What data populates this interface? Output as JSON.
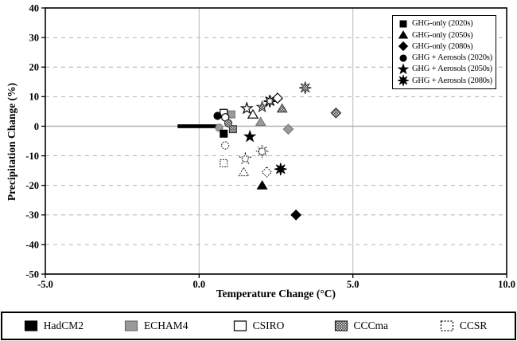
{
  "chart_data": {
    "type": "scatter",
    "xlabel": "Temperature Change (°C)",
    "ylabel": "Precipitation Change (%)",
    "xlim": [
      -5.0,
      10.0
    ],
    "ylim": [
      -50,
      40
    ],
    "xticks": [
      -5.0,
      0.0,
      5.0,
      10.0
    ],
    "xtick_labels": [
      "-5.0",
      "0.0",
      "5.0",
      "10.0"
    ],
    "yticks": [
      40,
      30,
      20,
      10,
      0,
      -10,
      -20,
      -30,
      -40,
      -50
    ],
    "grid": {
      "h_dashed": [
        30,
        20,
        10,
        -10,
        -20,
        -30,
        -40
      ],
      "h_solid": [
        0
      ],
      "v_solid": [
        0,
        5
      ]
    },
    "baseline_bar": {
      "x_start": -0.7,
      "x_end": 0.6,
      "y": 0,
      "color": "#000000"
    },
    "scenario_legend": [
      {
        "shape": "square",
        "label": "GHG-only (2020s)"
      },
      {
        "shape": "triangle",
        "label": "GHG-only (2050s)"
      },
      {
        "shape": "diamond",
        "label": "GHG-only (2080s)"
      },
      {
        "shape": "circle",
        "label": "GHG + Aerosols (2020s)"
      },
      {
        "shape": "star5",
        "label": "GHG + Aerosols (2050s)"
      },
      {
        "shape": "star8",
        "label": "GHG + Aerosols (2080s)"
      }
    ],
    "styles": {
      "black": {
        "fill": "#000000",
        "stroke": "#000000",
        "width": 1
      },
      "gray": {
        "fill": "#9a9a9a",
        "stroke": "#6b6b6b",
        "width": 0.9
      },
      "open": {
        "fill": "#ffffff",
        "stroke": "#000000",
        "width": 1.2
      },
      "hatched": {
        "fill": "pattern",
        "stroke": "#222222",
        "width": 0.9
      },
      "dotted": {
        "fill": "#ffffff",
        "stroke": "#000000",
        "width": 1,
        "dash": "1.7,1.6"
      }
    },
    "models": [
      {
        "name": "HadCM2",
        "style": "black",
        "points": [
          {
            "shape": "square",
            "x": 0.8,
            "y": -2.5
          },
          {
            "shape": "triangle",
            "x": 2.05,
            "y": -20
          },
          {
            "shape": "diamond",
            "x": 3.15,
            "y": -30
          },
          {
            "shape": "circle",
            "x": 0.6,
            "y": 3.5
          },
          {
            "shape": "star5",
            "x": 1.65,
            "y": -3.5
          },
          {
            "shape": "star8",
            "x": 2.65,
            "y": -14.5
          }
        ]
      },
      {
        "name": "ECHAM4",
        "style": "gray",
        "points": [
          {
            "shape": "square",
            "x": 1.05,
            "y": 4
          },
          {
            "shape": "triangle",
            "x": 2.0,
            "y": 1.5
          },
          {
            "shape": "diamond",
            "x": 2.9,
            "y": -1
          },
          {
            "shape": "circle",
            "x": 0.65,
            "y": -0.5
          }
        ]
      },
      {
        "name": "CSIRO",
        "style": "open",
        "points": [
          {
            "shape": "square",
            "x": 0.8,
            "y": 4.5
          },
          {
            "shape": "triangle",
            "x": 1.75,
            "y": 4
          },
          {
            "shape": "diamond",
            "x": 2.55,
            "y": 9.5
          },
          {
            "shape": "circle",
            "x": 0.85,
            "y": 3
          },
          {
            "shape": "star5",
            "x": 1.55,
            "y": 6
          },
          {
            "shape": "star8",
            "x": 2.3,
            "y": 8.5
          }
        ]
      },
      {
        "name": "CCCma",
        "style": "hatched",
        "points": [
          {
            "shape": "square",
            "x": 1.1,
            "y": -1
          },
          {
            "shape": "triangle",
            "x": 2.7,
            "y": 6
          },
          {
            "shape": "diamond",
            "x": 4.45,
            "y": 4.5
          },
          {
            "shape": "circle",
            "x": 0.95,
            "y": 1
          },
          {
            "shape": "star5",
            "x": 2.05,
            "y": 6.5
          },
          {
            "shape": "star8",
            "x": 3.45,
            "y": 13
          }
        ]
      },
      {
        "name": "CCSR",
        "style": "dotted",
        "points": [
          {
            "shape": "square",
            "x": 0.8,
            "y": -12.5
          },
          {
            "shape": "triangle",
            "x": 1.45,
            "y": -15.5
          },
          {
            "shape": "diamond",
            "x": 2.2,
            "y": -15.5
          },
          {
            "shape": "circle",
            "x": 0.85,
            "y": -6.5
          },
          {
            "shape": "star5",
            "x": 1.5,
            "y": -11
          },
          {
            "shape": "star8",
            "x": 2.05,
            "y": -8.5
          }
        ]
      }
    ],
    "colors": {
      "grid_dashed": "#b0b0b0",
      "grid_solid": "#b8b8b8",
      "zero_line": "#b0b0b0",
      "frame": "#000000",
      "background": "#ffffff"
    },
    "legend_position": "top-right",
    "model_legend_position": "bottom-strip"
  }
}
